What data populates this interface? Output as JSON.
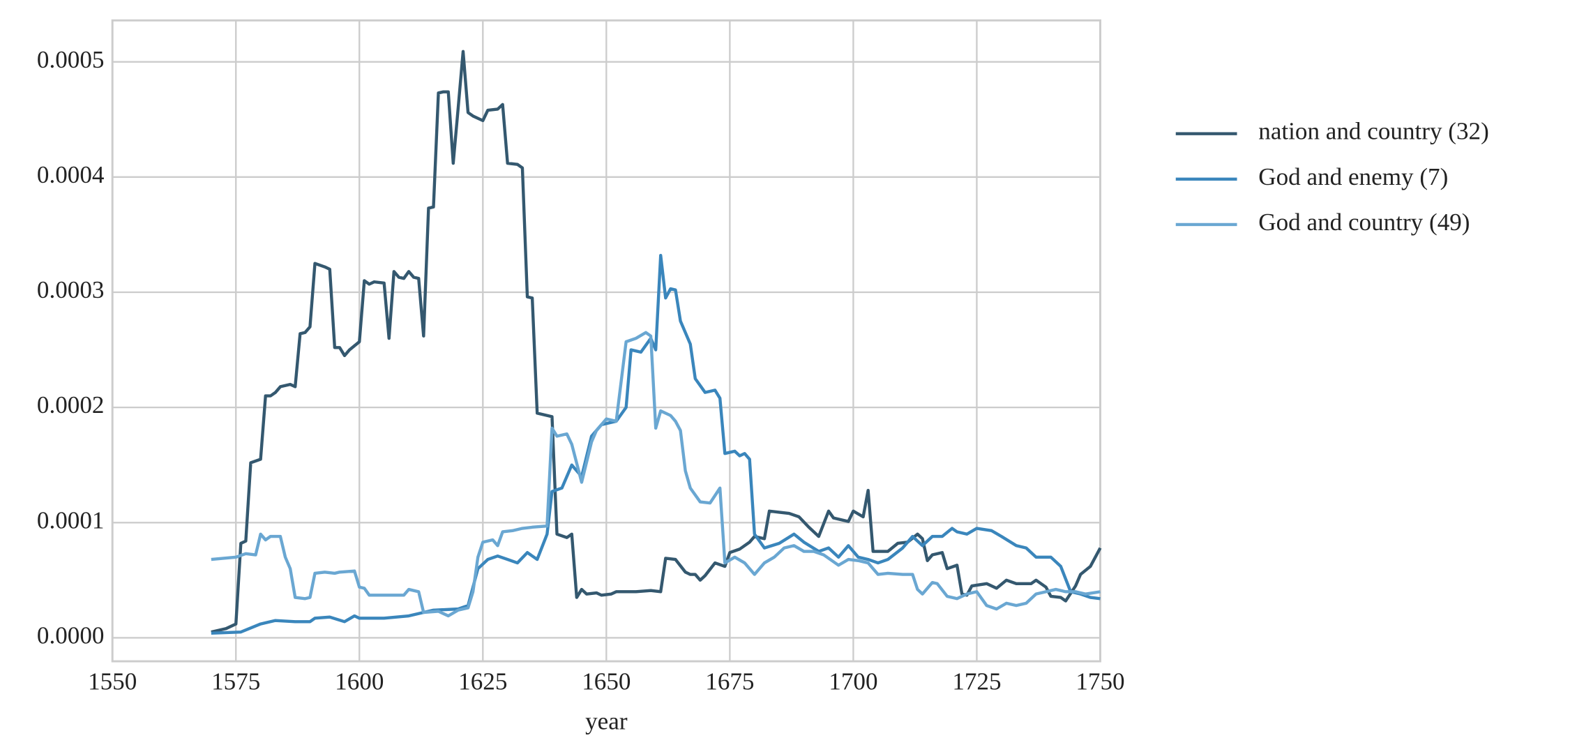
{
  "chart_data": {
    "type": "line",
    "xlabel": "year",
    "xlim": [
      1550,
      1750
    ],
    "xticks": [
      1550,
      1575,
      1600,
      1625,
      1650,
      1675,
      1700,
      1725,
      1750
    ],
    "ylim": [
      -2.04e-05,
      0.000536
    ],
    "yticks": [
      {
        "value": 0,
        "label": "0.0000"
      },
      {
        "value": 0.0001,
        "label": "0.0001"
      },
      {
        "value": 0.0002,
        "label": "0.0002"
      },
      {
        "value": 0.0003,
        "label": "0.0003"
      },
      {
        "value": 0.0004,
        "label": "0.0004"
      },
      {
        "value": 0.0005,
        "label": "0.0005"
      }
    ],
    "grid": true,
    "legend": "outside right",
    "series": [
      {
        "name": "nation and country (32)",
        "color": "#34586f",
        "x": [
          1570,
          1573,
          1575,
          1576,
          1577,
          1578,
          1580,
          1581,
          1582,
          1583,
          1584,
          1586,
          1587,
          1588,
          1589,
          1590,
          1591,
          1593,
          1594,
          1595,
          1596,
          1597,
          1598,
          1600,
          1601,
          1602,
          1603,
          1605,
          1606,
          1607,
          1608,
          1609,
          1610,
          1611,
          1612,
          1613,
          1614,
          1615,
          1616,
          1617,
          1618,
          1619,
          1620,
          1621,
          1622,
          1623,
          1625,
          1626,
          1628,
          1629,
          1630,
          1632,
          1633,
          1634,
          1635,
          1636,
          1639,
          1640,
          1642,
          1643,
          1644,
          1645,
          1646,
          1648,
          1649,
          1651,
          1652,
          1656,
          1659,
          1661,
          1662,
          1664,
          1666,
          1667,
          1668,
          1669,
          1670,
          1672,
          1674,
          1675,
          1677,
          1679,
          1680,
          1682,
          1683,
          1685,
          1687,
          1689,
          1691,
          1693,
          1695,
          1696,
          1699,
          1700,
          1702,
          1703,
          1704,
          1707,
          1709,
          1711,
          1713,
          1714,
          1715,
          1716,
          1718,
          1719,
          1721,
          1722,
          1723,
          1724,
          1727,
          1729,
          1731,
          1733,
          1736,
          1737,
          1739,
          1740,
          1742,
          1743,
          1745,
          1746,
          1748,
          1750
        ],
        "values": [
          5e-06,
          8e-06,
          1.2e-05,
          8.2e-05,
          8.4e-05,
          0.000152,
          0.000155,
          0.00021,
          0.00021,
          0.000213,
          0.000218,
          0.00022,
          0.000218,
          0.000264,
          0.000265,
          0.00027,
          0.000325,
          0.000322,
          0.00032,
          0.000252,
          0.000252,
          0.000245,
          0.00025,
          0.000257,
          0.00031,
          0.000307,
          0.000309,
          0.000308,
          0.00026,
          0.000318,
          0.000313,
          0.000312,
          0.000318,
          0.000313,
          0.000312,
          0.000262,
          0.000373,
          0.000374,
          0.000473,
          0.000474,
          0.000474,
          0.000412,
          0.00046,
          0.000509,
          0.000456,
          0.000453,
          0.000449,
          0.000458,
          0.000459,
          0.000463,
          0.000412,
          0.000411,
          0.000408,
          0.000296,
          0.000295,
          0.000195,
          0.000192,
          9e-05,
          8.7e-05,
          9e-05,
          3.5e-05,
          4.2e-05,
          3.8e-05,
          3.9e-05,
          3.7e-05,
          3.8e-05,
          4e-05,
          4e-05,
          4.1e-05,
          4e-05,
          6.9e-05,
          6.8e-05,
          5.7e-05,
          5.5e-05,
          5.5e-05,
          5e-05,
          5.4e-05,
          6.5e-05,
          6.2e-05,
          7.4e-05,
          7.7e-05,
          8.3e-05,
          8.8e-05,
          8.6e-05,
          0.00011,
          0.000109,
          0.000108,
          0.000105,
          9.6e-05,
          8.8e-05,
          0.00011,
          0.000104,
          0.000101,
          0.00011,
          0.000105,
          0.000128,
          7.5e-05,
          7.5e-05,
          8.2e-05,
          8.3e-05,
          9e-05,
          8.6e-05,
          6.7e-05,
          7.2e-05,
          7.4e-05,
          6e-05,
          6.3e-05,
          3.8e-05,
          3.7e-05,
          4.5e-05,
          4.7e-05,
          4.3e-05,
          5e-05,
          4.7e-05,
          4.7e-05,
          5e-05,
          4.4e-05,
          3.6e-05,
          3.5e-05,
          3.2e-05,
          4.5e-05,
          5.5e-05,
          6.2e-05,
          7.8e-05
        ]
      },
      {
        "name": "God and enemy (7)",
        "color": "#3a86bc",
        "x": [
          1570,
          1576,
          1580,
          1583,
          1587,
          1590,
          1591,
          1594,
          1597,
          1599,
          1600,
          1605,
          1610,
          1615,
          1620,
          1622,
          1624,
          1626,
          1628,
          1630,
          1632,
          1634,
          1636,
          1638,
          1639,
          1641,
          1643,
          1645,
          1647,
          1649,
          1652,
          1654,
          1655,
          1657,
          1659,
          1660,
          1661,
          1662,
          1663,
          1664,
          1665,
          1667,
          1668,
          1670,
          1672,
          1673,
          1674,
          1676,
          1677,
          1678,
          1679,
          1680,
          1682,
          1685,
          1688,
          1690,
          1693,
          1695,
          1697,
          1699,
          1701,
          1703,
          1705,
          1707,
          1710,
          1712,
          1714,
          1716,
          1718,
          1720,
          1721,
          1723,
          1725,
          1728,
          1730,
          1733,
          1735,
          1737,
          1740,
          1742,
          1744,
          1746,
          1748,
          1750
        ],
        "values": [
          4e-06,
          5e-06,
          1.2e-05,
          1.5e-05,
          1.4e-05,
          1.4e-05,
          1.7e-05,
          1.8e-05,
          1.4e-05,
          1.9e-05,
          1.7e-05,
          1.7e-05,
          1.9e-05,
          2.4e-05,
          2.5e-05,
          2.8e-05,
          6e-05,
          6.8e-05,
          7.1e-05,
          6.8e-05,
          6.5e-05,
          7.4e-05,
          6.8e-05,
          9e-05,
          0.000127,
          0.00013,
          0.00015,
          0.00014,
          0.000175,
          0.000185,
          0.000188,
          0.0002,
          0.00025,
          0.000248,
          0.00026,
          0.00025,
          0.000332,
          0.000295,
          0.000303,
          0.000302,
          0.000275,
          0.000255,
          0.000225,
          0.000213,
          0.000215,
          0.000208,
          0.00016,
          0.000162,
          0.000158,
          0.00016,
          0.000155,
          9e-05,
          7.8e-05,
          8.2e-05,
          9e-05,
          8.3e-05,
          7.5e-05,
          7.8e-05,
          7e-05,
          8e-05,
          7e-05,
          6.8e-05,
          6.5e-05,
          6.8e-05,
          7.8e-05,
          8.8e-05,
          8e-05,
          8.8e-05,
          8.8e-05,
          9.5e-05,
          9.2e-05,
          9e-05,
          9.5e-05,
          9.3e-05,
          8.8e-05,
          8e-05,
          7.8e-05,
          7e-05,
          7e-05,
          6.2e-05,
          4e-05,
          3.8e-05,
          3.5e-05,
          3.4e-05
        ]
      },
      {
        "name": "God and country (49)",
        "color": "#6aa7d2",
        "x": [
          1570,
          1575,
          1577,
          1579,
          1580,
          1581,
          1582,
          1584,
          1585,
          1586,
          1587,
          1589,
          1590,
          1591,
          1593,
          1595,
          1596,
          1599,
          1600,
          1601,
          1602,
          1609,
          1610,
          1612,
          1613,
          1616,
          1618,
          1620,
          1622,
          1623,
          1624,
          1625,
          1627,
          1628,
          1629,
          1631,
          1633,
          1635,
          1638,
          1639,
          1640,
          1642,
          1643,
          1645,
          1647,
          1648,
          1650,
          1652,
          1654,
          1656,
          1658,
          1659,
          1660,
          1661,
          1663,
          1664,
          1665,
          1666,
          1667,
          1669,
          1671,
          1673,
          1674,
          1676,
          1678,
          1680,
          1682,
          1684,
          1686,
          1688,
          1690,
          1692,
          1694,
          1697,
          1699,
          1701,
          1703,
          1705,
          1707,
          1710,
          1712,
          1713,
          1714,
          1716,
          1717,
          1719,
          1721,
          1723,
          1725,
          1727,
          1729,
          1731,
          1733,
          1735,
          1737,
          1739,
          1741,
          1743,
          1745,
          1747,
          1750
        ],
        "values": [
          6.8e-05,
          7e-05,
          7.3e-05,
          7.2e-05,
          9e-05,
          8.5e-05,
          8.8e-05,
          8.8e-05,
          7e-05,
          6e-05,
          3.5e-05,
          3.4e-05,
          3.5e-05,
          5.6e-05,
          5.7e-05,
          5.6e-05,
          5.7e-05,
          5.8e-05,
          4.4e-05,
          4.3e-05,
          3.7e-05,
          3.7e-05,
          4.2e-05,
          4e-05,
          2.2e-05,
          2.3e-05,
          1.9e-05,
          2.4e-05,
          2.6e-05,
          4e-05,
          7e-05,
          8.3e-05,
          8.5e-05,
          8e-05,
          9.2e-05,
          9.3e-05,
          9.5e-05,
          9.6e-05,
          9.7e-05,
          0.000182,
          0.000175,
          0.000177,
          0.000168,
          0.000135,
          0.00017,
          0.00018,
          0.00019,
          0.000188,
          0.000257,
          0.00026,
          0.000265,
          0.000262,
          0.000182,
          0.000197,
          0.000193,
          0.000188,
          0.00018,
          0.000145,
          0.00013,
          0.000118,
          0.000117,
          0.00013,
          6.5e-05,
          7e-05,
          6.5e-05,
          5.5e-05,
          6.5e-05,
          7e-05,
          7.8e-05,
          8e-05,
          7.5e-05,
          7.5e-05,
          7.2e-05,
          6.3e-05,
          6.8e-05,
          6.7e-05,
          6.5e-05,
          5.5e-05,
          5.6e-05,
          5.5e-05,
          5.5e-05,
          4.2e-05,
          3.8e-05,
          4.8e-05,
          4.7e-05,
          3.6e-05,
          3.4e-05,
          3.8e-05,
          4e-05,
          2.8e-05,
          2.5e-05,
          3e-05,
          2.8e-05,
          3e-05,
          3.8e-05,
          4e-05,
          4.2e-05,
          4e-05,
          4e-05,
          3.8e-05,
          4e-05
        ]
      }
    ]
  }
}
